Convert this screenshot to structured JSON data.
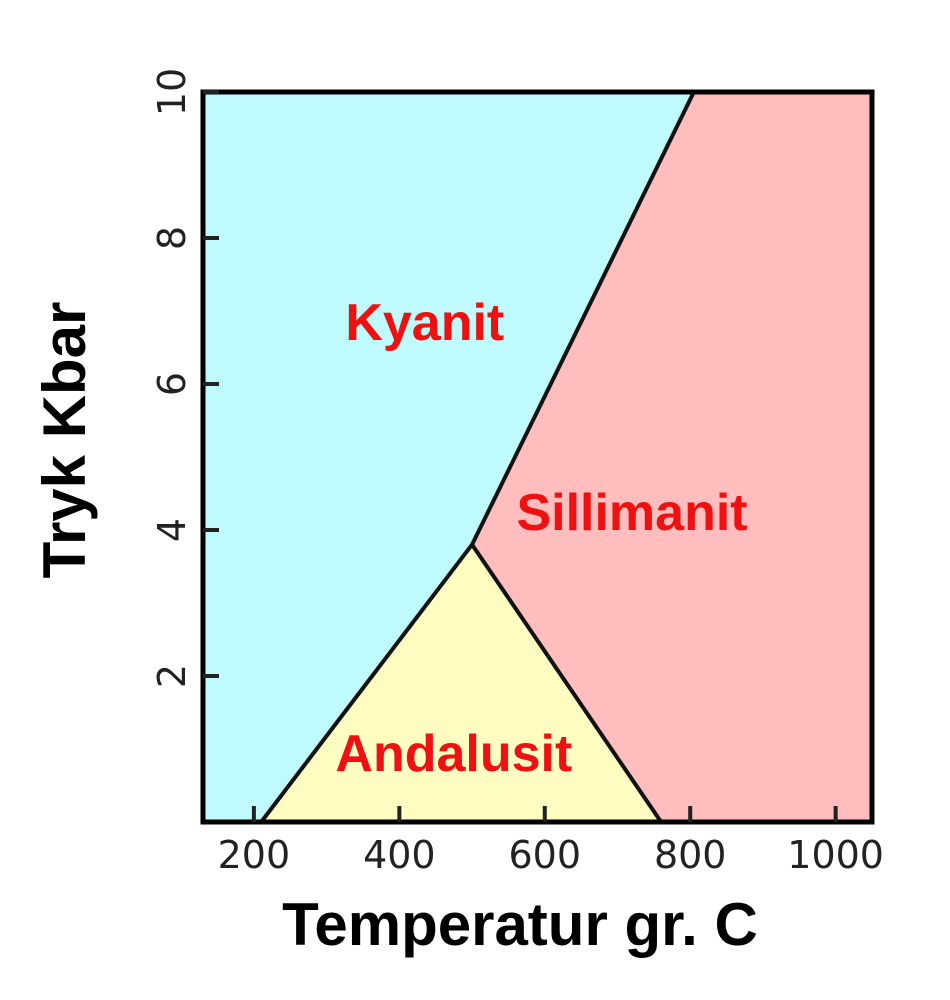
{
  "chart_data": {
    "type": "area",
    "title": "",
    "xlabel": "Temperatur gr. C",
    "ylabel": "Tryk Kbar",
    "xlim": [
      130,
      1050
    ],
    "ylim": [
      0,
      10
    ],
    "x_ticks": [
      200,
      400,
      600,
      800,
      1000
    ],
    "y_ticks": [
      2,
      4,
      6,
      8,
      10
    ],
    "grid": false,
    "legend": "none",
    "triple_point": {
      "x": 500,
      "y": 3.8
    },
    "boundaries": [
      {
        "name": "kyanit-andalusit",
        "points": [
          [
            210,
            0
          ],
          [
            500,
            3.8
          ]
        ]
      },
      {
        "name": "andalusit-sillimanit",
        "points": [
          [
            500,
            3.8
          ],
          [
            760,
            0
          ]
        ]
      },
      {
        "name": "kyanit-sillimanit",
        "points": [
          [
            500,
            3.8
          ],
          [
            805,
            10
          ]
        ]
      }
    ],
    "regions": [
      {
        "label": "Kyanit",
        "color": "#bffbfd",
        "label_at": [
          435,
          6.6
        ],
        "polygon": [
          [
            130,
            0
          ],
          [
            210,
            0
          ],
          [
            500,
            3.8
          ],
          [
            805,
            10
          ],
          [
            130,
            10
          ]
        ]
      },
      {
        "label": "Sillimanit",
        "color": "#ffbdbd",
        "label_at": [
          720,
          4.0
        ],
        "polygon": [
          [
            500,
            3.8
          ],
          [
            805,
            10
          ],
          [
            1050,
            10
          ],
          [
            1050,
            0
          ],
          [
            760,
            0
          ]
        ]
      },
      {
        "label": "Andalusit",
        "color": "#fefcc0",
        "label_at": [
          475,
          0.7
        ],
        "polygon": [
          [
            210,
            0
          ],
          [
            500,
            3.8
          ],
          [
            760,
            0
          ]
        ]
      }
    ],
    "label_color": "#ee1111"
  }
}
